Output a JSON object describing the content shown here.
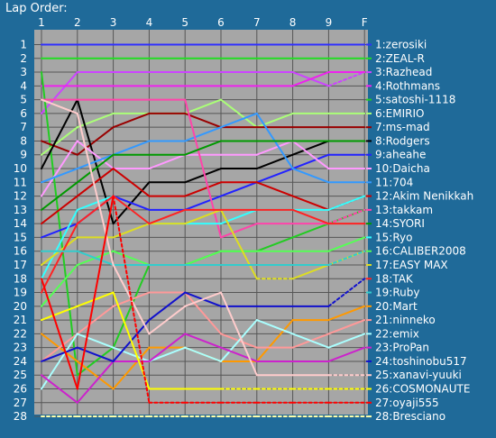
{
  "chart_data": {
    "type": "line",
    "title": "Lap Order:",
    "xlabel": "",
    "ylabel": "",
    "x_ticks": [
      "1",
      "2",
      "3",
      "4",
      "5",
      "6",
      "7",
      "8",
      "9",
      "F"
    ],
    "positions": [
      "1",
      "2",
      "3",
      "4",
      "5",
      "6",
      "7",
      "8",
      "9",
      "10",
      "11",
      "12",
      "13",
      "14",
      "15",
      "16",
      "17",
      "18",
      "19",
      "20",
      "21",
      "22",
      "23",
      "24",
      "25",
      "26",
      "27",
      "28"
    ],
    "ylim": [
      1,
      28
    ],
    "y_inverted": true,
    "grid": true,
    "background_color": "#1f6a99",
    "plot_background_color": "#a6a6a6",
    "series": [
      {
        "name": "1:zerosiki",
        "color": "#3030ff",
        "values": [
          1,
          1,
          1,
          1,
          1,
          1,
          1,
          1,
          1,
          1
        ]
      },
      {
        "name": "2:ZEAL-R",
        "color": "#22dd22",
        "values": [
          2,
          2,
          2,
          2,
          2,
          2,
          2,
          2,
          2,
          2
        ]
      },
      {
        "name": "3:Razhead",
        "color": "#cc44ff",
        "values": [
          6,
          3,
          3,
          3,
          3,
          3,
          3,
          3,
          4,
          3
        ],
        "dashed_segments": [
          8
        ]
      },
      {
        "name": "4:Rothmans",
        "color": "#ee22ee",
        "values": [
          4,
          4,
          4,
          4,
          4,
          4,
          4,
          4,
          3,
          3
        ]
      },
      {
        "name": "5:satoshi-1118",
        "color": "#22cc22",
        "values": [
          3,
          25,
          23,
          17,
          17,
          16,
          16,
          15,
          14,
          13
        ]
      },
      {
        "name": "6:EMIRIO",
        "color": "#aaff77",
        "values": [
          9,
          7,
          6,
          6,
          6,
          5,
          7,
          6,
          6,
          6
        ]
      },
      {
        "name": "7:ms-mad",
        "color": "#990000",
        "values": [
          8,
          9,
          7,
          6,
          6,
          7,
          7,
          7,
          7,
          7
        ]
      },
      {
        "name": "8:Rodgers",
        "color": "#000000",
        "values": [
          10,
          5,
          14,
          11,
          11,
          10,
          10,
          9,
          8,
          8
        ]
      },
      {
        "name": "9:aheahe",
        "color": "#2222ff",
        "values": [
          15,
          14,
          12,
          13,
          13,
          12,
          11,
          10,
          9,
          9
        ]
      },
      {
        "name": "10:Daicha",
        "color": "#ff99ff",
        "values": [
          12,
          8,
          10,
          10,
          9,
          9,
          9,
          8,
          10,
          10
        ]
      },
      {
        "name": "11:704",
        "color": "#3399ff",
        "values": [
          11,
          10,
          9,
          8,
          8,
          7,
          6,
          10,
          11,
          11
        ]
      },
      {
        "name": "12:Akim Nenikkah",
        "color": "#cc0000",
        "values": [
          14,
          12,
          10,
          12,
          12,
          11,
          11,
          12,
          13,
          12
        ],
        "dashed_segments": [
          8
        ]
      },
      {
        "name": "13:takkam",
        "color": "#ff44aa",
        "values": [
          5,
          5,
          5,
          5,
          5,
          15,
          14,
          14,
          14,
          13
        ],
        "dashed_segments": [
          8
        ]
      },
      {
        "name": "14:SYORI",
        "color": "#009900",
        "values": [
          13,
          11,
          9,
          9,
          9,
          8,
          8,
          8,
          8,
          8
        ]
      },
      {
        "name": "15:Ryo",
        "color": "#33ffff",
        "values": [
          18,
          13,
          12,
          14,
          14,
          14,
          13,
          13,
          13,
          12
        ]
      },
      {
        "name": "16:CALIBER2008",
        "color": "#55ff55",
        "values": [
          20,
          17,
          16,
          17,
          17,
          16,
          16,
          16,
          16,
          15
        ]
      },
      {
        "name": "17:EASY MAX",
        "color": "#dddd22",
        "values": [
          17,
          15,
          15,
          14,
          14,
          13,
          18,
          18,
          17,
          16
        ],
        "dashed_segments": [
          6
        ]
      },
      {
        "name": "18:TAK",
        "color": "#ff2222",
        "values": [
          19,
          14,
          12,
          14,
          13,
          13,
          13,
          13,
          14,
          14
        ]
      },
      {
        "name": "19:Ruby",
        "color": "#33cccc",
        "values": [
          16,
          16,
          17,
          17,
          17,
          17,
          17,
          17,
          17,
          16
        ],
        "dashed_segments": [
          8
        ]
      },
      {
        "name": "20:Mart",
        "color": "#ff9900",
        "values": [
          22,
          24,
          26,
          23,
          23,
          24,
          24,
          21,
          21,
          20
        ]
      },
      {
        "name": "21:ninneko",
        "color": "#ff9999",
        "values": [
          24,
          22,
          20,
          19,
          19,
          22,
          23,
          23,
          22,
          21
        ]
      },
      {
        "name": "22:emix",
        "color": "#aaffff",
        "values": [
          26,
          22,
          23,
          24,
          23,
          24,
          21,
          22,
          23,
          22
        ]
      },
      {
        "name": "23:ProPan",
        "color": "#cc22cc",
        "values": [
          25,
          27,
          24,
          24,
          22,
          23,
          24,
          24,
          24,
          23
        ]
      },
      {
        "name": "24:toshinobu517",
        "color": "#1111cc",
        "values": [
          24,
          23,
          24,
          21,
          19,
          20,
          20,
          20,
          20,
          18
        ],
        "dashed_segments": [
          8
        ]
      },
      {
        "name": "25:xanavi-yuuki",
        "color": "#ffcccc",
        "values": [
          5,
          6,
          17,
          22,
          20,
          19,
          25,
          25,
          25,
          25
        ],
        "dashed_segments": [
          8
        ]
      },
      {
        "name": "26:COSMONAUTE",
        "color": "#ffff00",
        "values": [
          21,
          20,
          19,
          26,
          26,
          26,
          26,
          26,
          26,
          26
        ],
        "dashed_segments": [
          5,
          6,
          7,
          8
        ]
      },
      {
        "name": "27:oyaji555",
        "color": "#ff0000",
        "values": [
          18,
          26,
          12,
          27,
          27,
          27,
          27,
          27,
          27,
          27
        ],
        "dashed_segments": [
          2,
          3,
          4,
          5,
          6,
          7,
          8
        ]
      },
      {
        "name": "28:Bresciano",
        "color": "#ffffaa",
        "values": [
          28,
          28,
          28,
          28,
          28,
          28,
          28,
          28,
          28,
          28
        ],
        "dashed_segments": [
          0,
          1,
          2,
          3,
          4,
          5,
          6,
          7,
          8
        ]
      }
    ]
  }
}
